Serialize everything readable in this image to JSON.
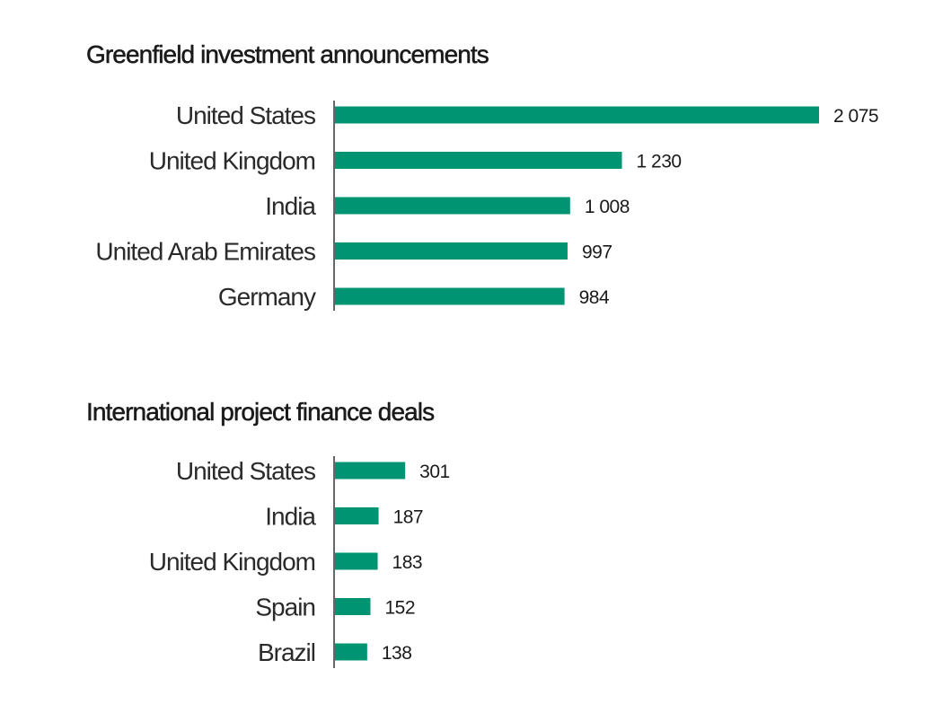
{
  "colors": {
    "bar": "#009473",
    "text": "#1a1a1a",
    "axis": "#333333"
  },
  "chart_data": [
    {
      "type": "bar",
      "orientation": "horizontal",
      "title": "Greenfield investment announcements",
      "categories": [
        "United States",
        "United Kingdom",
        "India",
        "United Arab Emirates",
        "Germany"
      ],
      "values": [
        2075,
        1230,
        1008,
        997,
        984
      ],
      "value_labels": [
        "2 075",
        "1 230",
        "1 008",
        "997",
        "984"
      ],
      "xlabel": "",
      "ylabel": "",
      "xlim": [
        0,
        2075
      ],
      "grid": false,
      "legend": "none"
    },
    {
      "type": "bar",
      "orientation": "horizontal",
      "title": "International project finance deals",
      "categories": [
        "United States",
        "India",
        "United Kingdom",
        "Spain",
        "Brazil"
      ],
      "values": [
        301,
        187,
        183,
        152,
        138
      ],
      "value_labels": [
        "301",
        "187",
        "183",
        "152",
        "138"
      ],
      "xlabel": "",
      "ylabel": "",
      "xlim": [
        0,
        2075
      ],
      "grid": false,
      "legend": "none"
    }
  ]
}
